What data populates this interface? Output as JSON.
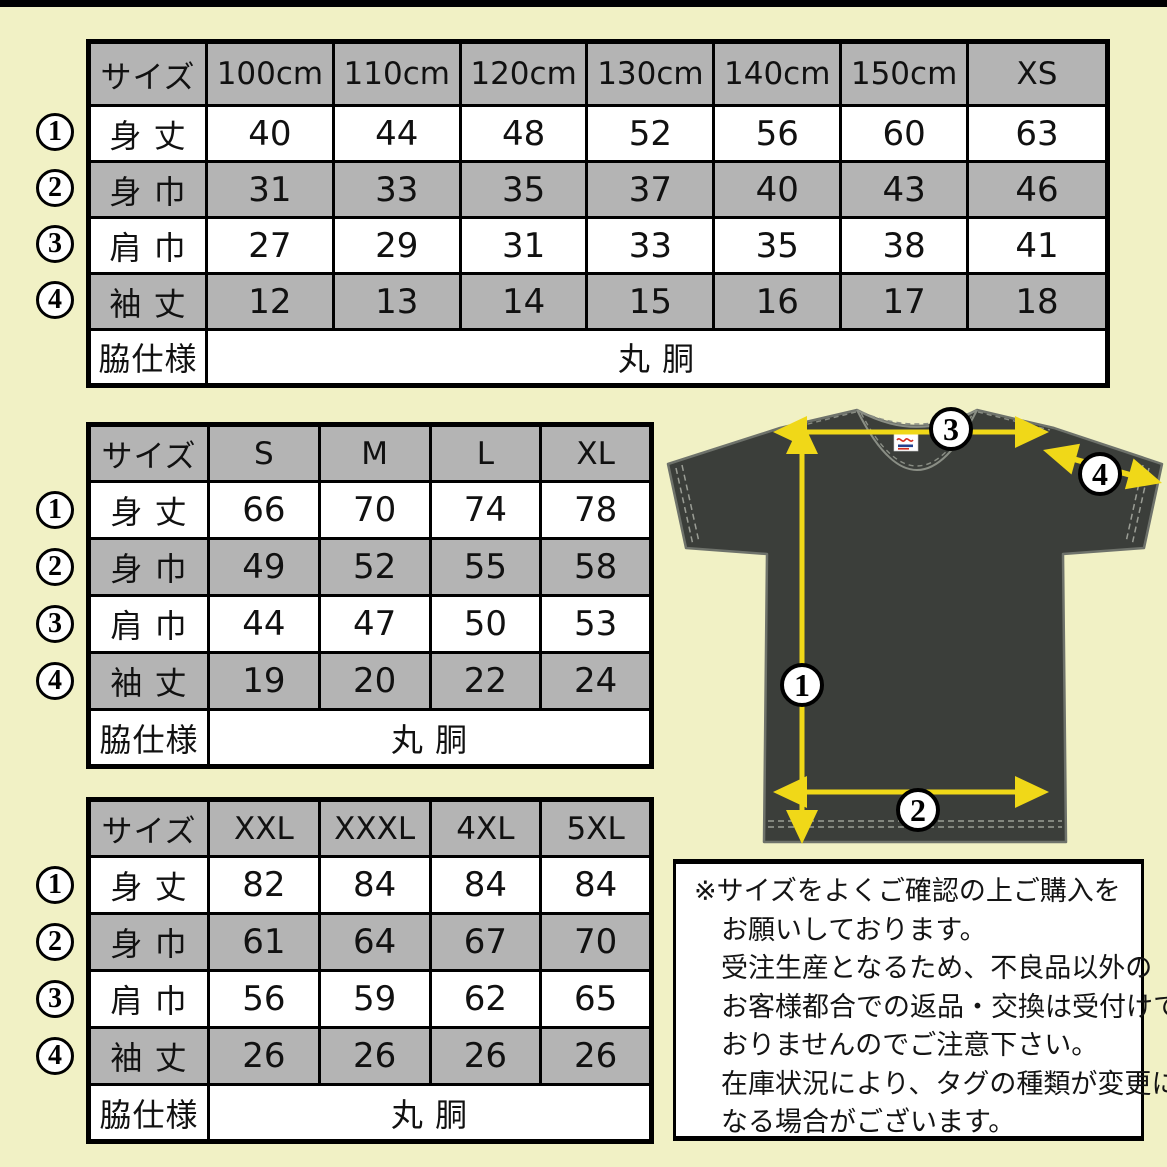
{
  "colors": {
    "background": "#f1f1c5",
    "cell_gray": "#b4b4b4",
    "shirt_dark": "#3b3e3a",
    "arrow_yellow": "#f0d818",
    "border_black": "#000000",
    "tag_red": "#d42b1e",
    "tag_blue": "#23418f"
  },
  "tables": [
    {
      "name": "kids-size-table",
      "header": [
        "サイズ",
        "100cm",
        "110cm",
        "120cm",
        "130cm",
        "140cm",
        "150cm",
        "XS"
      ],
      "rows": [
        {
          "label": "身 丈",
          "values": [
            "40",
            "44",
            "48",
            "52",
            "56",
            "60",
            "63"
          ]
        },
        {
          "label": "身 巾",
          "values": [
            "31",
            "33",
            "35",
            "37",
            "40",
            "43",
            "46"
          ]
        },
        {
          "label": "肩 巾",
          "values": [
            "27",
            "29",
            "31",
            "33",
            "35",
            "38",
            "41"
          ]
        },
        {
          "label": "袖 丈",
          "values": [
            "12",
            "13",
            "14",
            "15",
            "16",
            "17",
            "18"
          ]
        }
      ],
      "footer": {
        "label": "脇仕様",
        "value": "丸 胴"
      }
    },
    {
      "name": "adult-size-table",
      "header": [
        "サイズ",
        "S",
        "M",
        "L",
        "XL"
      ],
      "rows": [
        {
          "label": "身 丈",
          "values": [
            "66",
            "70",
            "74",
            "78"
          ]
        },
        {
          "label": "身 巾",
          "values": [
            "49",
            "52",
            "55",
            "58"
          ]
        },
        {
          "label": "肩 巾",
          "values": [
            "44",
            "47",
            "50",
            "53"
          ]
        },
        {
          "label": "袖 丈",
          "values": [
            "19",
            "20",
            "22",
            "24"
          ]
        }
      ],
      "footer": {
        "label": "脇仕様",
        "value": "丸 胴"
      }
    },
    {
      "name": "big-size-table",
      "header": [
        "サイズ",
        "XXL",
        "XXXL",
        "4XL",
        "5XL"
      ],
      "rows": [
        {
          "label": "身 丈",
          "values": [
            "82",
            "84",
            "84",
            "84"
          ]
        },
        {
          "label": "身 巾",
          "values": [
            "61",
            "64",
            "67",
            "70"
          ]
        },
        {
          "label": "肩 巾",
          "values": [
            "56",
            "59",
            "62",
            "65"
          ]
        },
        {
          "label": "袖 丈",
          "values": [
            "26",
            "26",
            "26",
            "26"
          ]
        }
      ],
      "footer": {
        "label": "脇仕様",
        "value": "丸 胴"
      }
    }
  ],
  "figure": {
    "circle_labels": [
      "1",
      "2",
      "3",
      "4"
    ]
  },
  "notice": {
    "lines": [
      "※サイズをよくご確認の上ご購入を",
      "お願いしております。",
      "受注生産となるため、不良品以外の",
      "お客様都合での返品・交換は受付けて",
      "おりませんのでご注意下さい。",
      "在庫状況により、タグの種類が変更に",
      "なる場合がございます。"
    ]
  }
}
